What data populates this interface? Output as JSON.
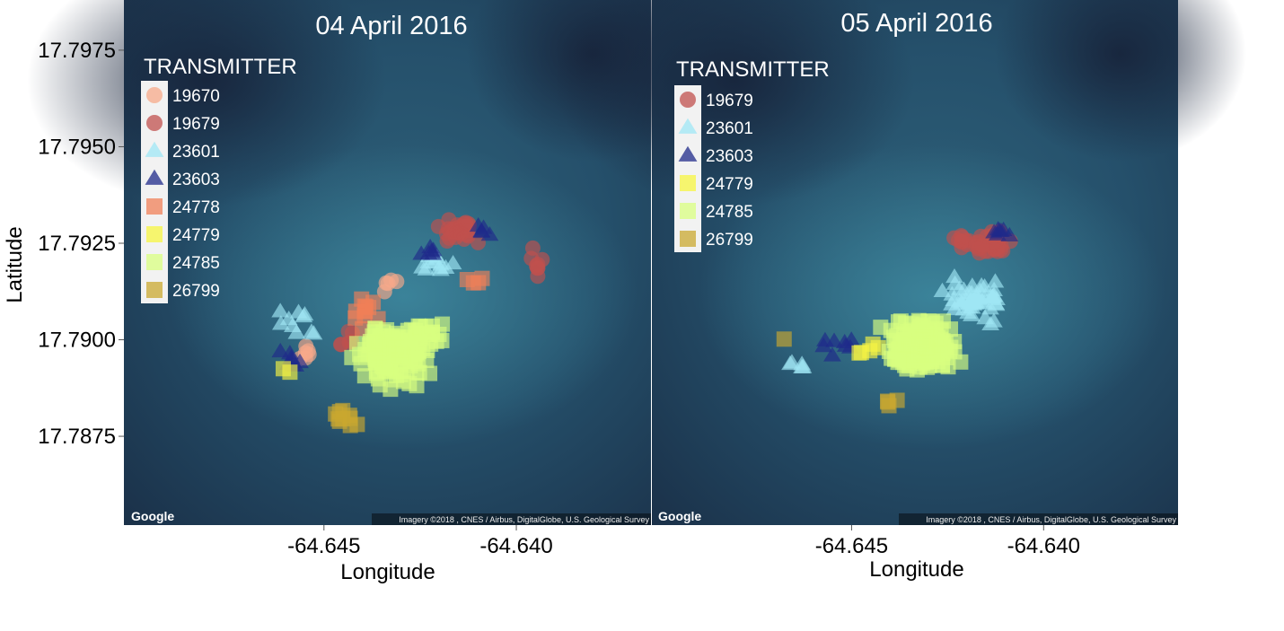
{
  "chart_data": {
    "type": "scatter",
    "ylabel": "Latitude",
    "y_ticks": [
      "17.7975",
      "17.7950",
      "17.7925",
      "17.7900",
      "17.7875"
    ],
    "y_tick_values": [
      17.7975,
      17.795,
      17.7925,
      17.79,
      17.7875
    ],
    "ylim": [
      17.7852,
      17.7988
    ],
    "legend_title": "TRANSMITTER",
    "legend_placement": "top-left",
    "basemap_credit": "Imagery ©2018 , CNES / Airbus, DigitalGlobe, U.S. Geological Survey",
    "logo_text": "Google",
    "transmitter_styles": {
      "19670": {
        "shape": "circle",
        "color": "#f7a98a"
      },
      "19679": {
        "shape": "circle",
        "color": "#c0504d"
      },
      "23601": {
        "shape": "triangle",
        "color": "#9fe7f5"
      },
      "23603": {
        "shape": "triangle",
        "color": "#1f2a8a"
      },
      "24778": {
        "shape": "square",
        "color": "#f08058"
      },
      "24779": {
        "shape": "square",
        "color": "#f7f542"
      },
      "24785": {
        "shape": "square",
        "color": "#d9ff80"
      },
      "26799": {
        "shape": "square",
        "color": "#c9a830"
      }
    },
    "panels": [
      {
        "title": "04 April 2016",
        "xlabel": "Longitude",
        "x_ticks": [
          "-64.645",
          "-64.640"
        ],
        "x_tick_values": [
          -64.645,
          -64.64
        ],
        "xlim": [
          -64.6502,
          -64.6365
        ],
        "legend_entries": [
          "19670",
          "19679",
          "23601",
          "23603",
          "24778",
          "24779",
          "24785",
          "26799"
        ],
        "series": [
          {
            "name": "19670",
            "clusters": [
              {
                "lon": -64.6455,
                "lat": 17.7896,
                "spread_lon": 0.0005,
                "spread_lat": 0.0004,
                "n": 6
              },
              {
                "lon": -64.6433,
                "lat": 17.7915,
                "spread_lon": 0.0004,
                "spread_lat": 0.0004,
                "n": 5
              }
            ]
          },
          {
            "name": "19679",
            "clusters": [
              {
                "lon": -64.6415,
                "lat": 17.7928,
                "spread_lon": 0.0008,
                "spread_lat": 0.0004,
                "n": 34
              },
              {
                "lon": -64.6395,
                "lat": 17.792,
                "spread_lon": 0.0004,
                "spread_lat": 0.0005,
                "n": 8
              },
              {
                "lon": -64.6445,
                "lat": 17.79,
                "spread_lon": 0.0004,
                "spread_lat": 0.0003,
                "n": 6
              }
            ]
          },
          {
            "name": "23601",
            "clusters": [
              {
                "lon": -64.6455,
                "lat": 17.7905,
                "spread_lon": 0.0008,
                "spread_lat": 0.0005,
                "n": 10
              },
              {
                "lon": -64.6422,
                "lat": 17.792,
                "spread_lon": 0.0006,
                "spread_lat": 0.0006,
                "n": 12
              }
            ]
          },
          {
            "name": "23603",
            "clusters": [
              {
                "lon": -64.6458,
                "lat": 17.7895,
                "spread_lon": 0.0005,
                "spread_lat": 0.0003,
                "n": 8
              },
              {
                "lon": -64.6422,
                "lat": 17.7922,
                "spread_lon": 0.0004,
                "spread_lat": 0.0003,
                "n": 6
              },
              {
                "lon": -64.6408,
                "lat": 17.7927,
                "spread_lon": 0.0004,
                "spread_lat": 0.0003,
                "n": 5
              }
            ]
          },
          {
            "name": "24778",
            "clusters": [
              {
                "lon": -64.644,
                "lat": 17.7907,
                "spread_lon": 0.0006,
                "spread_lat": 0.0005,
                "n": 12
              },
              {
                "lon": -64.6412,
                "lat": 17.7915,
                "spread_lon": 0.0004,
                "spread_lat": 0.0002,
                "n": 4
              }
            ]
          },
          {
            "name": "24779",
            "clusters": [
              {
                "lon": -64.646,
                "lat": 17.7893,
                "spread_lon": 0.0002,
                "spread_lat": 0.0002,
                "n": 2
              }
            ]
          },
          {
            "name": "24785",
            "clusters": [
              {
                "lon": -64.6432,
                "lat": 17.7897,
                "spread_lon": 0.0012,
                "spread_lat": 0.001,
                "n": 150
              },
              {
                "lon": -64.6423,
                "lat": 17.7902,
                "spread_lon": 0.0006,
                "spread_lat": 0.0005,
                "n": 14
              }
            ]
          },
          {
            "name": "26799",
            "clusters": [
              {
                "lon": -64.6445,
                "lat": 17.788,
                "spread_lon": 0.001,
                "spread_lat": 0.0003,
                "n": 10
              }
            ]
          }
        ]
      },
      {
        "title": "05 April 2016",
        "xlabel": "Longitude",
        "x_ticks": [
          "-64.645",
          "-64.640"
        ],
        "x_tick_values": [
          -64.645,
          -64.64
        ],
        "xlim": [
          -64.6502,
          -64.6365
        ],
        "legend_entries": [
          "19679",
          "23601",
          "23603",
          "24779",
          "24785",
          "26799"
        ],
        "series": [
          {
            "name": "19679",
            "clusters": [
              {
                "lon": -64.6415,
                "lat": 17.7925,
                "spread_lon": 0.001,
                "spread_lat": 0.0004,
                "n": 45
              }
            ]
          },
          {
            "name": "23601",
            "clusters": [
              {
                "lon": -64.6418,
                "lat": 17.791,
                "spread_lon": 0.001,
                "spread_lat": 0.0007,
                "n": 55
              },
              {
                "lon": -64.6465,
                "lat": 17.7893,
                "spread_lon": 0.0004,
                "spread_lat": 0.0003,
                "n": 5
              }
            ]
          },
          {
            "name": "23603",
            "clusters": [
              {
                "lon": -64.641,
                "lat": 17.7927,
                "spread_lon": 0.0006,
                "spread_lat": 0.0003,
                "n": 7
              },
              {
                "lon": -64.6455,
                "lat": 17.7898,
                "spread_lon": 0.0007,
                "spread_lat": 0.0004,
                "n": 8
              }
            ]
          },
          {
            "name": "24779",
            "clusters": [
              {
                "lon": -64.6445,
                "lat": 17.7898,
                "spread_lon": 0.0006,
                "spread_lat": 0.0004,
                "n": 5
              }
            ]
          },
          {
            "name": "24785",
            "clusters": [
              {
                "lon": -64.6432,
                "lat": 17.7898,
                "spread_lon": 0.0012,
                "spread_lat": 0.0009,
                "n": 160
              }
            ]
          },
          {
            "name": "26799",
            "clusters": [
              {
                "lon": -64.644,
                "lat": 17.7884,
                "spread_lon": 0.0003,
                "spread_lat": 0.0002,
                "n": 4
              },
              {
                "lon": -64.6467,
                "lat": 17.79,
                "spread_lon": 0.0001,
                "spread_lat": 0.0001,
                "n": 1
              }
            ]
          }
        ]
      }
    ]
  }
}
